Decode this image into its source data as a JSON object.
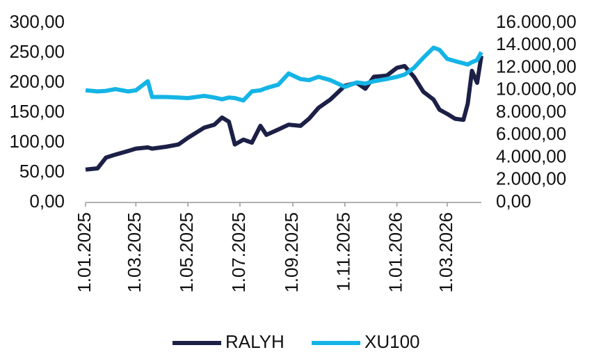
{
  "chart_data": {
    "type": "line",
    "x": [
      "2025-01-01",
      "2025-01-15",
      "2025-01-25",
      "2025-02-05",
      "2025-02-20",
      "2025-03-01",
      "2025-03-15",
      "2025-03-20",
      "2025-04-05",
      "2025-04-20",
      "2025-05-01",
      "2025-05-20",
      "2025-06-01",
      "2025-06-10",
      "2025-06-18",
      "2025-06-25",
      "2025-07-05",
      "2025-07-15",
      "2025-07-25",
      "2025-08-01",
      "2025-08-15",
      "2025-08-27",
      "2025-09-10",
      "2025-09-20",
      "2025-10-01",
      "2025-10-15",
      "2025-11-01",
      "2025-11-15",
      "2025-11-25",
      "2025-12-05",
      "2025-12-20",
      "2026-01-01",
      "2026-01-10",
      "2026-01-21",
      "2026-02-01",
      "2026-02-13",
      "2026-02-20",
      "2026-03-01",
      "2026-03-10",
      "2026-03-20",
      "2026-03-25",
      "2026-03-30",
      "2026-04-05",
      "2026-04-10"
    ],
    "series": [
      {
        "name": "RALYH",
        "color": "#1c2046",
        "axis": "y",
        "values": [
          55,
          57,
          75,
          80,
          86,
          90,
          92,
          90,
          93,
          97,
          108,
          125,
          130,
          142,
          135,
          97,
          105,
          100,
          128,
          113,
          122,
          130,
          128,
          140,
          158,
          172,
          195,
          200,
          190,
          210,
          212,
          225,
          228,
          210,
          185,
          172,
          155,
          148,
          140,
          138,
          165,
          220,
          200,
          245
        ]
      },
      {
        "name": "XU100",
        "color": "#14b4e6",
        "axis": "y2",
        "values": [
          10000,
          9900,
          9950,
          10100,
          9900,
          10000,
          10800,
          9400,
          9400,
          9350,
          9300,
          9500,
          9350,
          9200,
          9350,
          9300,
          9100,
          9900,
          10000,
          10200,
          10500,
          11500,
          11000,
          10900,
          11200,
          10900,
          10300,
          10700,
          10600,
          10800,
          11000,
          11200,
          11400,
          12000,
          12900,
          13800,
          13600,
          12800,
          12600,
          12400,
          12300,
          12500,
          12700,
          13400
        ]
      }
    ],
    "xlim": [
      "2025-01-01",
      "2026-04-10"
    ],
    "xticks": [
      {
        "value": "2025-01-01",
        "label": "1.01.2025"
      },
      {
        "value": "2025-03-01",
        "label": "1.03.2025"
      },
      {
        "value": "2025-05-01",
        "label": "1.05.2025"
      },
      {
        "value": "2025-07-01",
        "label": "1.07.2025"
      },
      {
        "value": "2025-09-01",
        "label": "1.09.2025"
      },
      {
        "value": "2025-11-01",
        "label": "1.11.2025"
      },
      {
        "value": "2026-01-01",
        "label": "1.01.2026"
      },
      {
        "value": "2026-03-01",
        "label": "1.03.2026"
      }
    ],
    "ylim": [
      0,
      300
    ],
    "yticks": [
      {
        "value": 0,
        "label": "0,00"
      },
      {
        "value": 50,
        "label": "50,00"
      },
      {
        "value": 100,
        "label": "100,00"
      },
      {
        "value": 150,
        "label": "150,00"
      },
      {
        "value": 200,
        "label": "200,00"
      },
      {
        "value": 250,
        "label": "250,00"
      },
      {
        "value": 300,
        "label": "300,00"
      }
    ],
    "y2lim": [
      0,
      16000
    ],
    "y2ticks": [
      {
        "value": 0,
        "label": "0,00"
      },
      {
        "value": 2000,
        "label": "2.000,00"
      },
      {
        "value": 4000,
        "label": "4.000,00"
      },
      {
        "value": 6000,
        "label": "6.000,00"
      },
      {
        "value": 8000,
        "label": "8.000,00"
      },
      {
        "value": 10000,
        "label": "10.000,00"
      },
      {
        "value": 12000,
        "label": "12.000,00"
      },
      {
        "value": 14000,
        "label": "14.000,00"
      },
      {
        "value": 16000,
        "label": "16.000,00"
      }
    ],
    "legend": "bottom"
  }
}
